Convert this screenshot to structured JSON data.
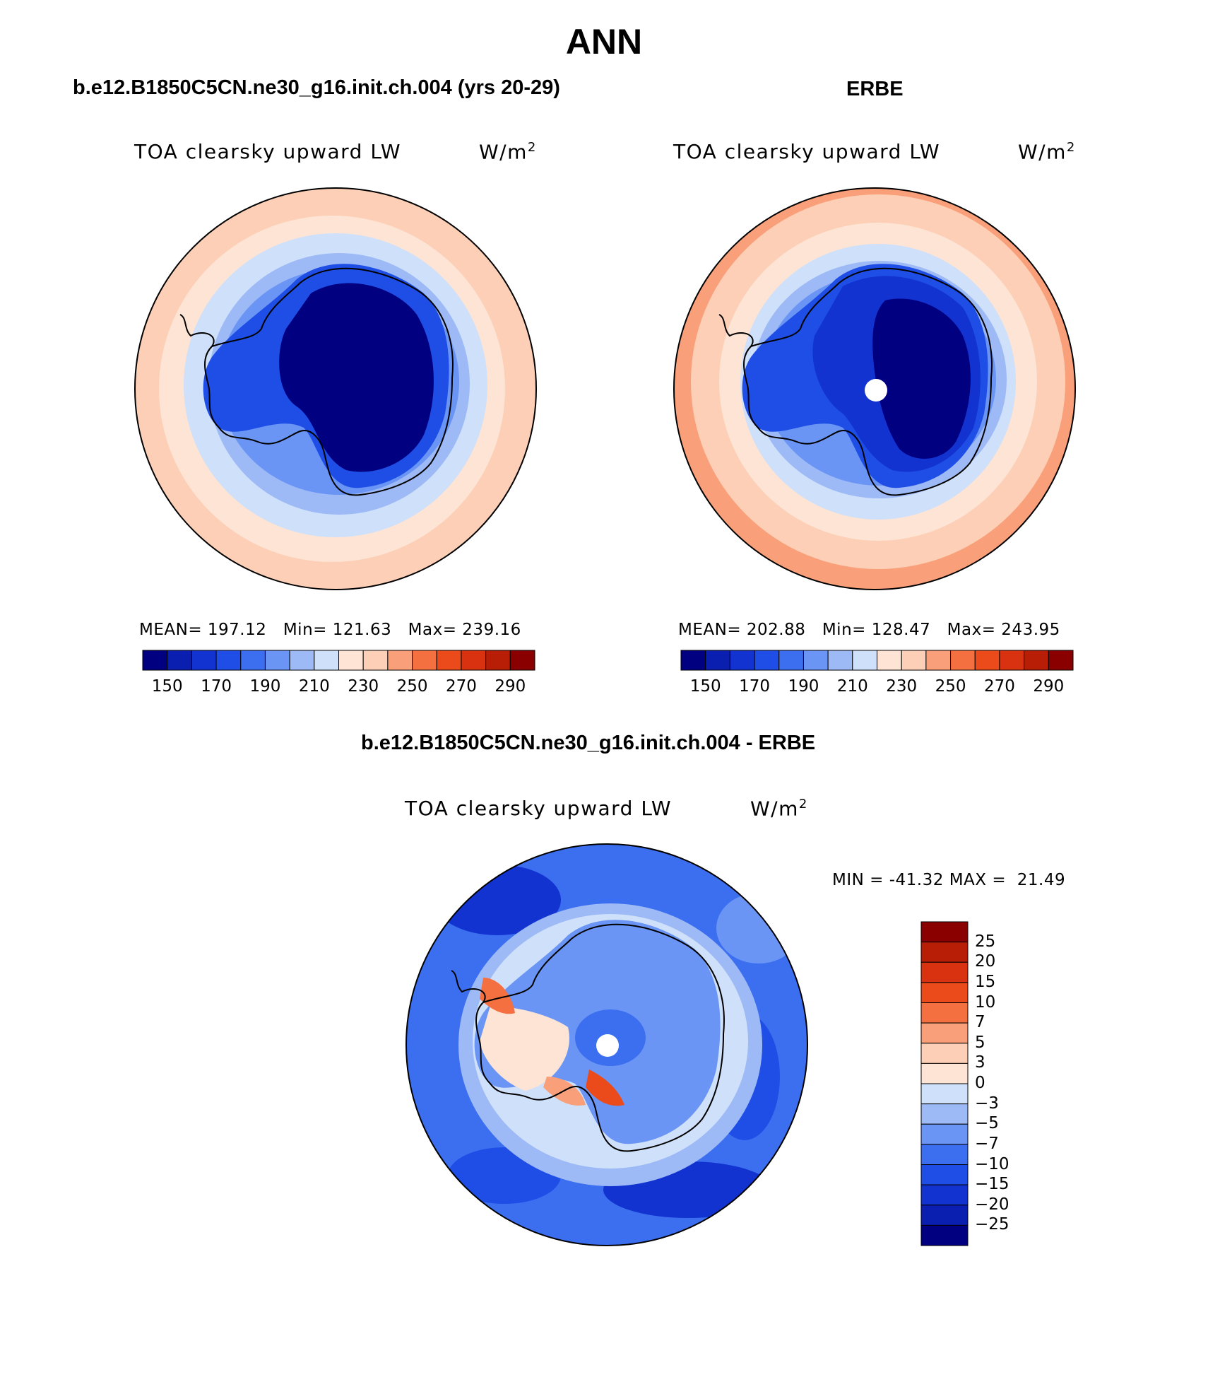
{
  "title": "ANN",
  "panels": [
    {
      "id": "model",
      "case_title": "b.e12.B1850C5CN.ne30_g16.init.ch.004 (yrs 20-29)",
      "variable": "TOA clearsky upward LW",
      "units": "W/m",
      "units_exp": "2",
      "mean_label": "MEAN=",
      "mean": "197.12",
      "min_label": "Min=",
      "min": "121.63",
      "max_label": "Max=",
      "max": "239.16"
    },
    {
      "id": "obs",
      "case_title": "ERBE",
      "variable": "TOA clearsky upward LW",
      "units": "W/m",
      "units_exp": "2",
      "mean_label": "MEAN=",
      "mean": "202.88",
      "min_label": "Min=",
      "min": "128.47",
      "max_label": "Max=",
      "max": "243.95"
    }
  ],
  "diff_panel": {
    "case_title": "b.e12.B1850C5CN.ne30_g16.init.ch.004 - ERBE",
    "variable": "TOA clearsky upward LW",
    "units": "W/m",
    "units_exp": "2",
    "min_label": "MIN =",
    "min": "-41.32",
    "max_label": "MAX =",
    "max": "21.49"
  },
  "colorbar_abs": {
    "colors": [
      "#000080",
      "#0a1fb0",
      "#1233d0",
      "#1e4ee6",
      "#3c6ff0",
      "#6a95f4",
      "#9dbaf6",
      "#cfe0fa",
      "#fde4d4",
      "#fccfb6",
      "#f9a07a",
      "#f47040",
      "#eb4a1a",
      "#d93210",
      "#b81e06",
      "#8a0000"
    ],
    "tick_labels": [
      "150",
      "170",
      "190",
      "210",
      "230",
      "250",
      "270",
      "290"
    ]
  },
  "colorbar_diff": {
    "colors": [
      "#8a0000",
      "#b81e06",
      "#d93210",
      "#eb4a1a",
      "#f47040",
      "#f9a07a",
      "#fccfb6",
      "#fde4d4",
      "#cfe0fa",
      "#9dbaf6",
      "#6a95f4",
      "#3c6ff0",
      "#1e4ee6",
      "#1233d0",
      "#0a1fb0",
      "#000080"
    ],
    "tick_labels": [
      "25",
      "20",
      "15",
      "10",
      "7",
      "5",
      "3",
      "0",
      "−3",
      "−5",
      "−7",
      "−10",
      "−15",
      "−20",
      "−25"
    ]
  }
}
